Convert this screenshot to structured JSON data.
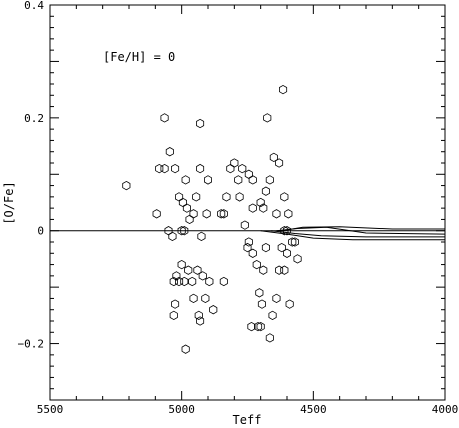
{
  "chart_data": {
    "type": "scatter",
    "annotation": "[Fe/H] = 0",
    "xlabel": "Teff",
    "ylabel": "[O/Fe]",
    "xlim": [
      5500,
      4000
    ],
    "ylim": [
      -0.3,
      0.4
    ],
    "x_ticks": [
      5500,
      5000,
      4500,
      4000
    ],
    "x_tick_labels": [
      "5500",
      "5000",
      "4500",
      "4000"
    ],
    "y_ticks": [
      -0.2,
      0,
      0.2,
      0.4
    ],
    "y_tick_labels": [
      "−0.2",
      "0",
      "0.2",
      "0.4"
    ],
    "grid": false,
    "marker": "open-hexagon",
    "points": [
      [
        5210,
        0.08
      ],
      [
        5065,
        0.2
      ],
      [
        5085,
        0.11
      ],
      [
        5065,
        0.11
      ],
      [
        5095,
        0.03
      ],
      [
        5045,
        0.14
      ],
      [
        5025,
        0.11
      ],
      [
        5050,
        0.0
      ],
      [
        5035,
        -0.01
      ],
      [
        5000,
        0.0
      ],
      [
        5010,
        0.06
      ],
      [
        4990,
        0.0
      ],
      [
        4995,
        0.05
      ],
      [
        4985,
        0.09
      ],
      [
        4980,
        0.04
      ],
      [
        4970,
        0.02
      ],
      [
        4955,
        0.03
      ],
      [
        4945,
        0.06
      ],
      [
        4930,
        0.19
      ],
      [
        4930,
        0.11
      ],
      [
        4925,
        -0.01
      ],
      [
        4900,
        0.09
      ],
      [
        4905,
        0.03
      ],
      [
        4850,
        0.03
      ],
      [
        4840,
        0.03
      ],
      [
        4830,
        0.06
      ],
      [
        4815,
        0.11
      ],
      [
        4800,
        0.12
      ],
      [
        4785,
        0.09
      ],
      [
        4780,
        0.06
      ],
      [
        4770,
        0.11
      ],
      [
        4760,
        0.01
      ],
      [
        4745,
        0.1
      ],
      [
        4730,
        0.09
      ],
      [
        4730,
        0.04
      ],
      [
        4700,
        0.05
      ],
      [
        4690,
        0.04
      ],
      [
        4680,
        0.07
      ],
      [
        4675,
        0.2
      ],
      [
        4665,
        0.09
      ],
      [
        4650,
        0.13
      ],
      [
        4640,
        0.03
      ],
      [
        4630,
        0.12
      ],
      [
        4615,
        0.25
      ],
      [
        4610,
        0.06
      ],
      [
        4610,
        0.0
      ],
      [
        4600,
        0.0
      ],
      [
        4595,
        0.03
      ],
      [
        4580,
        -0.02
      ],
      [
        4570,
        -0.02
      ],
      [
        4560,
        -0.05
      ],
      [
        5020,
        -0.08
      ],
      [
        5030,
        -0.09
      ],
      [
        5010,
        -0.09
      ],
      [
        5000,
        -0.06
      ],
      [
        4990,
        -0.09
      ],
      [
        4975,
        -0.07
      ],
      [
        4960,
        -0.09
      ],
      [
        4955,
        -0.12
      ],
      [
        4940,
        -0.07
      ],
      [
        4935,
        -0.15
      ],
      [
        4930,
        -0.16
      ],
      [
        4920,
        -0.08
      ],
      [
        4910,
        -0.12
      ],
      [
        4895,
        -0.09
      ],
      [
        4880,
        -0.14
      ],
      [
        4985,
        -0.21
      ],
      [
        5025,
        -0.13
      ],
      [
        5030,
        -0.15
      ],
      [
        4840,
        -0.09
      ],
      [
        4750,
        -0.03
      ],
      [
        4745,
        -0.02
      ],
      [
        4730,
        -0.04
      ],
      [
        4715,
        -0.06
      ],
      [
        4705,
        -0.11
      ],
      [
        4695,
        -0.13
      ],
      [
        4690,
        -0.07
      ],
      [
        4680,
        -0.03
      ],
      [
        4665,
        -0.19
      ],
      [
        4655,
        -0.15
      ],
      [
        4640,
        -0.12
      ],
      [
        4630,
        -0.07
      ],
      [
        4620,
        -0.03
      ],
      [
        4610,
        -0.07
      ],
      [
        4600,
        -0.04
      ],
      [
        4590,
        -0.13
      ],
      [
        4700,
        -0.17
      ],
      [
        4735,
        -0.17
      ],
      [
        4710,
        -0.17
      ]
    ],
    "series": [
      {
        "values": [
          [
            5500,
            0.0
          ],
          [
            4000,
            0.0
          ]
        ]
      },
      {
        "values": [
          [
            4700,
            0.0
          ],
          [
            4600,
            -0.006
          ],
          [
            4500,
            -0.013
          ],
          [
            4350,
            -0.016
          ],
          [
            4000,
            -0.016
          ]
        ]
      },
      {
        "values": [
          [
            4660,
            0.0
          ],
          [
            4570,
            -0.005
          ],
          [
            4470,
            -0.009
          ],
          [
            4300,
            -0.011
          ],
          [
            4000,
            -0.011
          ]
        ]
      },
      {
        "values": [
          [
            4640,
            0.0
          ],
          [
            4560,
            0.004
          ],
          [
            4450,
            0.006
          ],
          [
            4300,
            -0.004
          ],
          [
            4000,
            -0.006
          ]
        ]
      },
      {
        "values": [
          [
            4620,
            0.0
          ],
          [
            4540,
            0.006
          ],
          [
            4400,
            0.007
          ],
          [
            4200,
            0.003
          ],
          [
            4000,
            0.003
          ]
        ]
      }
    ]
  }
}
